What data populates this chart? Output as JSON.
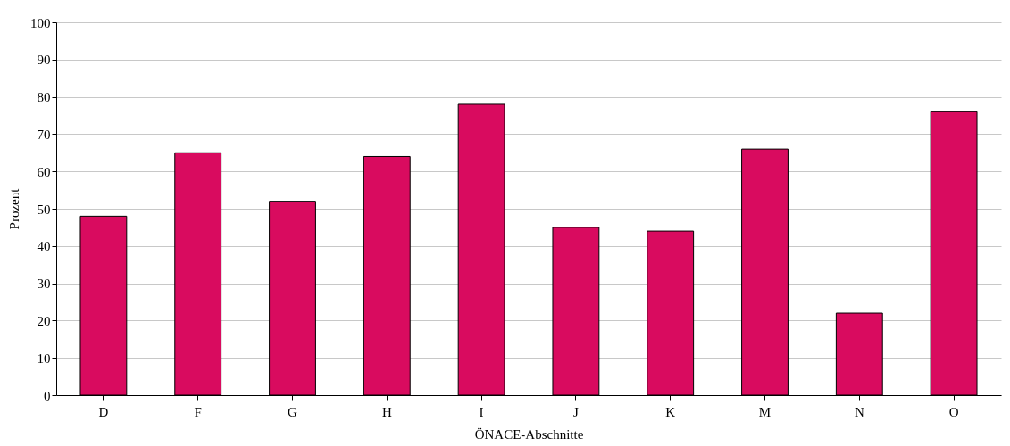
{
  "chart_data": {
    "type": "bar",
    "xlabel": "ÖNACE-Abschnitte",
    "ylabel": "Prozent",
    "categories": [
      "D",
      "F",
      "G",
      "H",
      "I",
      "J",
      "K",
      "M",
      "N",
      "O"
    ],
    "values": [
      48,
      65,
      52,
      64,
      78,
      45,
      44,
      66,
      22,
      76
    ],
    "color": "#d90b5f",
    "ylim": [
      0,
      100
    ],
    "yticks": [
      0,
      10,
      20,
      30,
      40,
      50,
      60,
      70,
      80,
      90,
      100
    ],
    "grid": "y"
  }
}
